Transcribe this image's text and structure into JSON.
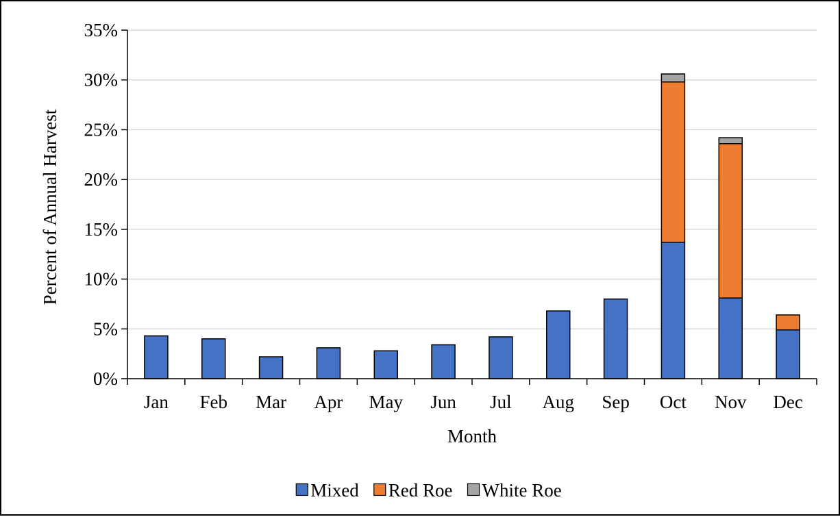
{
  "chart_data": {
    "type": "bar",
    "stacked": true,
    "categories": [
      "Jan",
      "Feb",
      "Mar",
      "Apr",
      "May",
      "Jun",
      "Jul",
      "Aug",
      "Sep",
      "Oct",
      "Nov",
      "Dec"
    ],
    "series": [
      {
        "name": "Mixed",
        "color": "#4472C4",
        "values": [
          4.3,
          4.0,
          2.2,
          3.1,
          2.8,
          3.4,
          4.2,
          6.8,
          8.0,
          13.7,
          8.1,
          4.9
        ]
      },
      {
        "name": "Red Roe",
        "color": "#ED7D31",
        "values": [
          0,
          0,
          0,
          0,
          0,
          0,
          0,
          0,
          0,
          16.1,
          15.5,
          1.5
        ]
      },
      {
        "name": "White Roe",
        "color": "#A5A5A5",
        "values": [
          0,
          0,
          0,
          0,
          0,
          0,
          0,
          0,
          0,
          0.8,
          0.6,
          0
        ]
      }
    ],
    "xlabel": "Month",
    "ylabel": "Percent of Annual Harvest",
    "ylim": [
      0,
      35
    ],
    "yticks": [
      "0%",
      "5%",
      "10%",
      "15%",
      "20%",
      "25%",
      "30%",
      "35%"
    ],
    "grid": true,
    "legend_position": "bottom"
  }
}
